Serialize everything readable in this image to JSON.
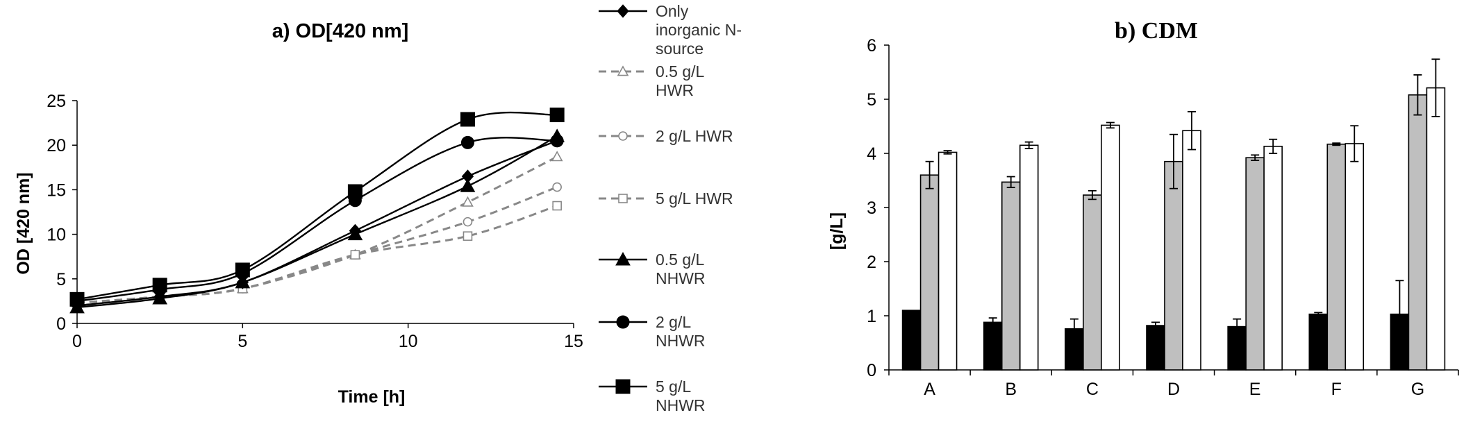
{
  "chart_data": [
    {
      "type": "line",
      "title": "a) OD[420 nm]",
      "xlabel": "Time  [h]",
      "ylabel": "OD [420 nm]",
      "xlim": [
        0,
        15
      ],
      "ylim": [
        0,
        25
      ],
      "x_ticks": [
        "0",
        "5",
        "10",
        "15"
      ],
      "y_ticks": [
        "0",
        "5",
        "10",
        "15",
        "20",
        "25"
      ],
      "grid": false,
      "legend_position": "right",
      "series": [
        {
          "name": "Only inorganic N-source",
          "name_lines": [
            "Only",
            "inorganic N-",
            "source"
          ],
          "style": "solid",
          "marker": "diamond-filled",
          "color": "#000000",
          "x": [
            0,
            2.5,
            5,
            8.4,
            11.8,
            14.5
          ],
          "y": [
            2.0,
            3.0,
            4.6,
            10.4,
            16.5,
            20.5
          ]
        },
        {
          "name": "0.5 g/L HWR",
          "name_lines": [
            "0.5 g/L",
            "HWR"
          ],
          "style": "dashed",
          "marker": "triangle-open",
          "color": "#888888",
          "x": [
            0,
            2.5,
            5,
            8.4,
            11.8,
            14.5
          ],
          "y": [
            2.3,
            3.0,
            3.9,
            7.7,
            13.6,
            18.7
          ]
        },
        {
          "name": "2 g/L HWR",
          "name_lines": [
            "2 g/L HWR"
          ],
          "style": "dashed",
          "marker": "circle-open",
          "color": "#888888",
          "x": [
            0,
            2.5,
            5,
            8.4,
            11.8,
            14.5
          ],
          "y": [
            2.3,
            3.0,
            3.9,
            7.7,
            11.4,
            15.3
          ]
        },
        {
          "name": "5 g/L HWR",
          "name_lines": [
            "5 g/L HWR"
          ],
          "style": "dashed",
          "marker": "square-open",
          "color": "#888888",
          "x": [
            0,
            2.5,
            5,
            8.4,
            11.8,
            14.5
          ],
          "y": [
            2.3,
            3.0,
            3.9,
            7.7,
            9.8,
            13.2
          ]
        },
        {
          "name": "0.5 g/L NHWR",
          "name_lines": [
            "0.5 g/L",
            "NHWR"
          ],
          "style": "solid",
          "marker": "triangle-filled",
          "color": "#000000",
          "x": [
            0,
            2.5,
            5,
            8.4,
            11.8,
            14.5
          ],
          "y": [
            1.8,
            2.8,
            4.6,
            10.0,
            15.4,
            21.0
          ]
        },
        {
          "name": "2 g/L NHWR",
          "name_lines": [
            "2 g/L",
            "NHWR"
          ],
          "style": "solid",
          "marker": "circle-filled",
          "color": "#000000",
          "x": [
            0,
            2.5,
            5,
            8.4,
            11.8,
            14.5
          ],
          "y": [
            2.5,
            3.8,
            5.6,
            13.8,
            20.3,
            20.5
          ]
        },
        {
          "name": "5 g/L NHWR",
          "name_lines": [
            "5 g/L",
            "NHWR"
          ],
          "style": "solid",
          "marker": "square-filled",
          "color": "#000000",
          "x": [
            0,
            2.5,
            5,
            8.4,
            11.8,
            14.5
          ],
          "y": [
            2.7,
            4.3,
            6.0,
            14.8,
            22.9,
            23.4
          ]
        }
      ]
    },
    {
      "type": "bar",
      "title": "b) CDM",
      "xlabel": "",
      "ylabel": "[g/L]",
      "ylim": [
        0,
        6
      ],
      "y_ticks": [
        "0",
        "1",
        "2",
        "3",
        "4",
        "5",
        "6"
      ],
      "grid": false,
      "categories": [
        "A",
        "B",
        "C",
        "D",
        "E",
        "F",
        "G"
      ],
      "series": [
        {
          "color": "#000000",
          "values": [
            1.1,
            0.88,
            0.76,
            0.82,
            0.8,
            1.03,
            1.03
          ],
          "errors": [
            0.0,
            0.08,
            0.18,
            0.06,
            0.14,
            0.03,
            0.62
          ]
        },
        {
          "color": "#bfbfbf",
          "values": [
            3.6,
            3.47,
            3.23,
            3.85,
            3.92,
            4.17,
            5.08
          ],
          "errors": [
            0.25,
            0.1,
            0.08,
            0.5,
            0.05,
            0.02,
            0.37
          ]
        },
        {
          "color": "#ffffff",
          "values": [
            4.02,
            4.15,
            4.52,
            4.42,
            4.13,
            4.18,
            5.21
          ],
          "errors": [
            0.03,
            0.06,
            0.05,
            0.35,
            0.13,
            0.33,
            0.53
          ]
        }
      ]
    }
  ]
}
